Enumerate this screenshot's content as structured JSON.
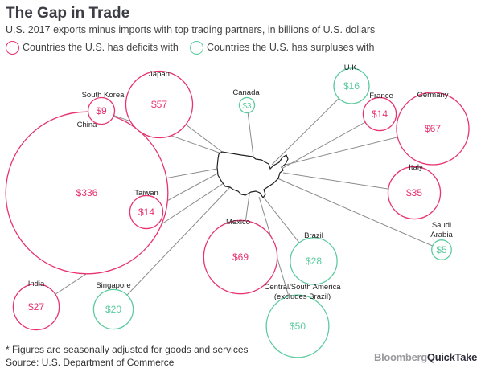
{
  "title": "The Gap in Trade",
  "subtitle": "U.S. 2017 exports minus imports with top trading partners, in billions of U.S. dollars",
  "legend": [
    {
      "label": "Countries the U.S. has deficits with",
      "color": "#e8336f"
    },
    {
      "label": "Countries the U.S. has surpluses with",
      "color": "#5ccb9f"
    }
  ],
  "footnote": "* Figures are seasonally adjusted for goods and services",
  "source": "Source: U.S. Department of Commerce",
  "logo": {
    "part1": "Bloomberg",
    "part2": "QuickTake"
  },
  "chart_data": {
    "type": "bubble",
    "title": "The Gap in Trade",
    "unit": "billions of U.S. dollars",
    "partners": [
      {
        "name": "China",
        "value": 336,
        "label": "$336",
        "balance": "deficit"
      },
      {
        "name": "South Korea",
        "value": 9,
        "label": "$9",
        "balance": "deficit"
      },
      {
        "name": "Japan",
        "value": 57,
        "label": "$57",
        "balance": "deficit"
      },
      {
        "name": "Taiwan",
        "value": 14,
        "label": "$14",
        "balance": "deficit"
      },
      {
        "name": "Canada",
        "value": 3,
        "label": "$3",
        "balance": "surplus"
      },
      {
        "name": "U.K.",
        "value": 16,
        "label": "$16",
        "balance": "surplus"
      },
      {
        "name": "France",
        "value": 14,
        "label": "$14",
        "balance": "deficit"
      },
      {
        "name": "Germany",
        "value": 67,
        "label": "$67",
        "balance": "deficit"
      },
      {
        "name": "Italy",
        "value": 35,
        "label": "$35",
        "balance": "deficit"
      },
      {
        "name": "Saudi Arabia",
        "value": 5,
        "label": "$5",
        "balance": "surplus"
      },
      {
        "name": "Mexico",
        "value": 69,
        "label": "$69",
        "balance": "deficit"
      },
      {
        "name": "Brazil",
        "value": 28,
        "label": "$28",
        "balance": "surplus"
      },
      {
        "name": "Central/South America (excludes Brazil)",
        "value": 50,
        "label": "$50",
        "balance": "surplus"
      },
      {
        "name": "Singapore",
        "value": 20,
        "label": "$20",
        "balance": "surplus"
      },
      {
        "name": "India",
        "value": 27,
        "label": "$27",
        "balance": "deficit"
      }
    ]
  }
}
